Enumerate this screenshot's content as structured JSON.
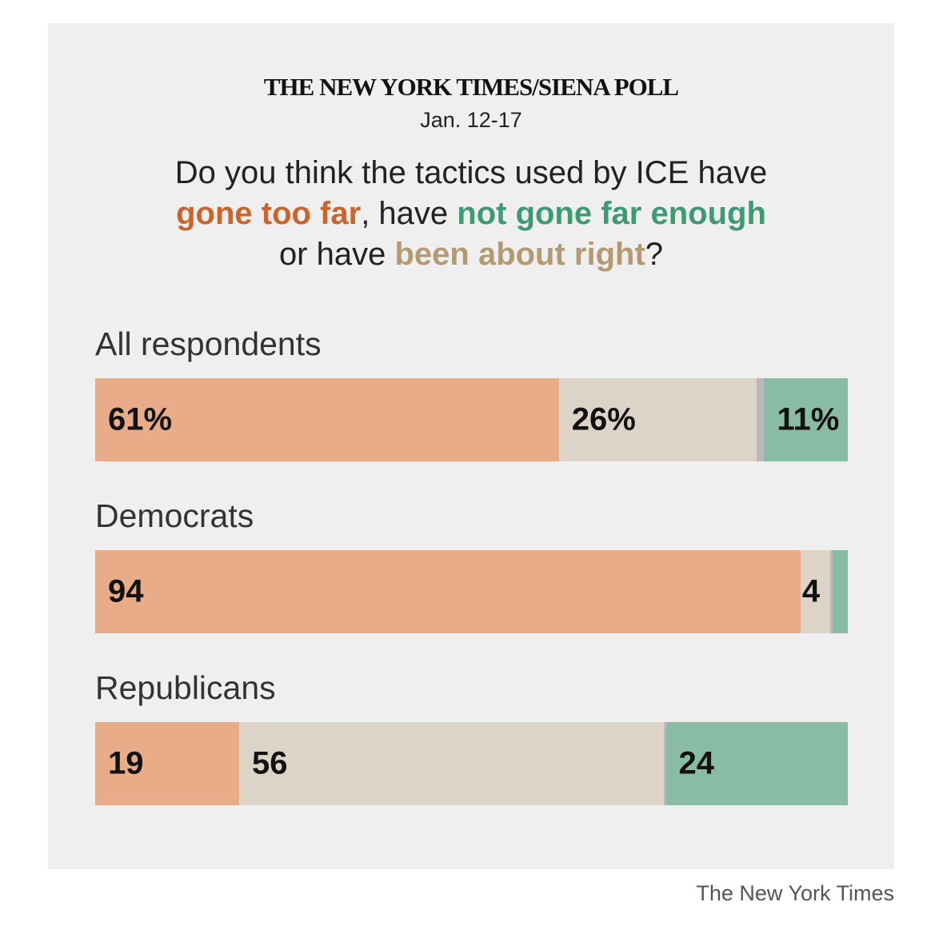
{
  "title": "THE NEW YORK TIMES/SIENA POLL",
  "subtitle": "Jan. 12-17",
  "question": {
    "part1": "Do you think the tactics used by ICE have",
    "too_far": "gone too far",
    "part2": ", have ",
    "not_enough": "not gone far enough",
    "part3": "or have ",
    "about_right": "been about right",
    "part4": "?"
  },
  "credit": "The New York Times",
  "colors": {
    "too_far": "#e8ac88",
    "about_right": "#ddd4c8",
    "unsure": "#b9b9b9",
    "not_enough": "#89bba5",
    "too_far_text": "#c9642d",
    "about_right_text": "#b39a72",
    "not_enough_text": "#3e9a74"
  },
  "chart_data": {
    "type": "bar",
    "orientation": "horizontal-stacked",
    "categories": [
      "All respondents",
      "Democrats",
      "Republicans"
    ],
    "series": [
      {
        "key": "too_far",
        "values": [
          61,
          94,
          19
        ],
        "labels": [
          "61%",
          "94",
          "19"
        ]
      },
      {
        "key": "about_right",
        "values": [
          26,
          4,
          56
        ],
        "labels": [
          "26%",
          "4",
          "56"
        ]
      },
      {
        "key": "unsure",
        "values": [
          1,
          0.3,
          0.3
        ],
        "labels": [
          "",
          "",
          ""
        ]
      },
      {
        "key": "not_enough",
        "values": [
          11,
          2,
          24
        ],
        "labels": [
          "11%",
          "",
          "24"
        ]
      }
    ]
  }
}
